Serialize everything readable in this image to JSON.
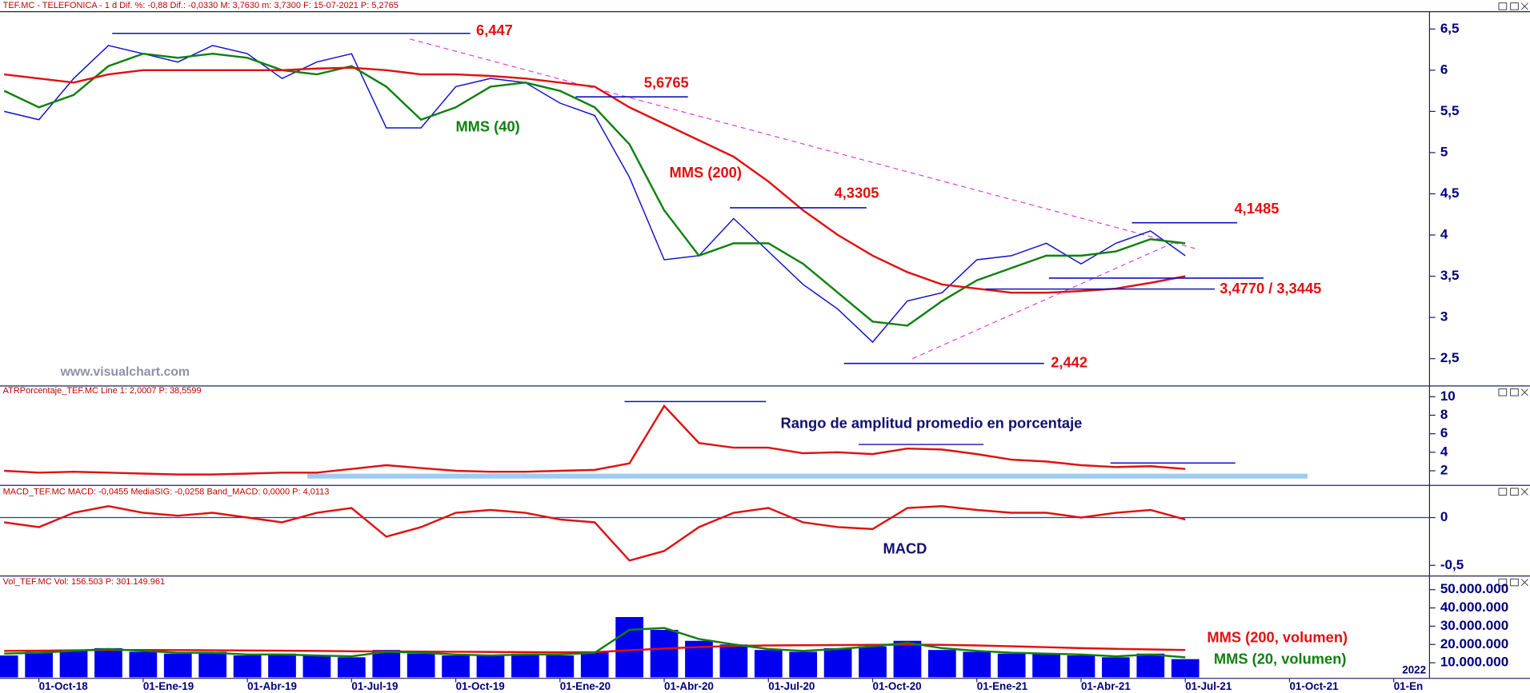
{
  "chart_data": [
    {
      "type": "line",
      "header": "TEF.MC - TELEFONICA - 1 d Dif. %: -0,88 Dif.: -0,0330 M: 3,7630 m: 3,7300 F: 15-07-2021 P: 5,2765",
      "watermark": "www.visualchart.com",
      "x": [
        -1,
        0,
        1,
        2,
        3,
        4,
        5,
        6,
        7,
        8,
        9,
        10,
        11,
        12,
        13,
        14,
        15,
        16,
        17,
        18,
        19,
        20,
        21,
        22,
        23,
        24,
        25,
        26,
        27,
        28,
        29,
        30,
        31,
        32,
        33
      ],
      "series": [
        {
          "color": "#1010d0",
          "values": [
            5.5,
            5.4,
            5.9,
            6.3,
            6.2,
            6.1,
            6.3,
            6.2,
            5.9,
            6.1,
            6.2,
            5.3,
            5.3,
            5.8,
            5.9,
            5.85,
            5.6,
            5.45,
            4.7,
            3.7,
            3.75,
            4.2,
            3.8,
            3.4,
            3.1,
            2.7,
            3.2,
            3.3,
            3.7,
            3.75,
            3.9,
            3.65,
            3.9,
            4.05,
            3.75
          ]
        },
        {
          "name": "MMS (40)",
          "color": "#108010",
          "values": [
            5.75,
            5.55,
            5.7,
            6.05,
            6.2,
            6.15,
            6.2,
            6.15,
            6.0,
            5.95,
            6.05,
            5.8,
            5.4,
            5.55,
            5.8,
            5.85,
            5.75,
            5.55,
            5.1,
            4.3,
            3.75,
            3.9,
            3.9,
            3.65,
            3.3,
            2.95,
            2.9,
            3.2,
            3.45,
            3.6,
            3.75,
            3.75,
            3.8,
            3.95,
            3.9
          ]
        },
        {
          "name": "MMS (200)",
          "color": "#e01010",
          "values": [
            5.95,
            5.9,
            5.85,
            5.95,
            6.0,
            6.0,
            6.0,
            6.0,
            6.0,
            6.02,
            6.03,
            6.0,
            5.95,
            5.95,
            5.93,
            5.9,
            5.85,
            5.8,
            5.55,
            5.35,
            5.15,
            4.95,
            4.65,
            4.3,
            4.0,
            3.75,
            3.55,
            3.4,
            3.35,
            3.3,
            3.3,
            3.32,
            3.35,
            3.42,
            3.5
          ]
        }
      ],
      "levels": [
        {
          "value": 6.447,
          "label": "6,447"
        },
        {
          "value": 5.6765,
          "label": "5,6765"
        },
        {
          "value": 4.3305,
          "label": "4,3305"
        },
        {
          "value": 4.1485,
          "label": "4,1485"
        },
        {
          "values": [
            3.477,
            3.3445
          ],
          "label": "3,4770 / 3,3445"
        },
        {
          "value": 2.442,
          "label": "2,442"
        }
      ],
      "ylim": [
        2.18,
        6.71
      ],
      "yticks": [
        {
          "value": 2.5,
          "label": "2,5"
        },
        3,
        {
          "value": 3.5,
          "label": "3,5"
        },
        4,
        {
          "value": 4.5,
          "label": "4,5"
        },
        5,
        {
          "value": 5.5,
          "label": "5,5"
        },
        6,
        {
          "value": 6.5,
          "label": "6,5"
        }
      ]
    },
    {
      "type": "line",
      "header": "ATRPorcentaje_TEF.MC Line 1: 2,0007 P: 38,5599",
      "annotation": "Rango de amplitud promedio en porcentaje",
      "x": [
        -1,
        0,
        1,
        2,
        3,
        4,
        5,
        6,
        7,
        8,
        9,
        10,
        11,
        12,
        13,
        14,
        15,
        16,
        17,
        18,
        19,
        20,
        21,
        22,
        23,
        24,
        25,
        26,
        27,
        28,
        29,
        30,
        31,
        32,
        33
      ],
      "series": [
        {
          "color": "#e01010",
          "values": [
            2.0,
            1.8,
            1.9,
            1.8,
            1.7,
            1.6,
            1.6,
            1.7,
            1.8,
            1.8,
            2.2,
            2.6,
            2.3,
            2.0,
            1.9,
            1.9,
            2.0,
            2.1,
            2.8,
            9.0,
            5.0,
            4.5,
            4.5,
            3.9,
            4.0,
            3.8,
            4.4,
            4.3,
            3.8,
            3.2,
            3.0,
            2.6,
            2.4,
            2.5,
            2.2
          ]
        }
      ],
      "ylim": [
        0.53,
        11.05
      ],
      "yticks": [
        2,
        4,
        6,
        8,
        10
      ]
    },
    {
      "type": "line",
      "header": "MACD_TEF.MC MACD: -0,0455 MediaSIG: -0,0258 Band_MACD: 0,0000 P: 4,0113",
      "annotation": "MACD",
      "x": [
        -1,
        0,
        1,
        2,
        3,
        4,
        5,
        6,
        7,
        8,
        9,
        10,
        11,
        12,
        13,
        14,
        15,
        16,
        17,
        18,
        19,
        20,
        21,
        22,
        23,
        24,
        25,
        26,
        27,
        28,
        29,
        30,
        31,
        32,
        33
      ],
      "series": [
        {
          "color": "#e01010",
          "values": [
            -0.05,
            -0.1,
            0.05,
            0.12,
            0.05,
            0.02,
            0.05,
            0.0,
            -0.05,
            0.05,
            0.1,
            -0.2,
            -0.1,
            0.05,
            0.08,
            0.05,
            -0.02,
            -0.05,
            -0.45,
            -0.35,
            -0.1,
            0.05,
            0.1,
            -0.05,
            -0.1,
            -0.12,
            0.1,
            0.12,
            0.08,
            0.05,
            0.05,
            0.0,
            0.05,
            0.08,
            -0.02
          ]
        }
      ],
      "ylim": [
        -0.602,
        0.327
      ],
      "yticks": [
        0,
        {
          "value": -0.5,
          "label": "-0,5"
        }
      ]
    },
    {
      "type": "bar",
      "header": "Vol_TEF.MC Vol: 156.503 P: 301.149.961",
      "year_label": "2022",
      "x": [
        -1,
        0,
        1,
        2,
        3,
        4,
        5,
        6,
        7,
        8,
        9,
        10,
        11,
        12,
        13,
        14,
        15,
        16,
        17,
        18,
        19,
        20,
        21,
        22,
        23,
        24,
        25,
        26,
        27,
        28,
        29,
        30,
        31,
        32,
        33
      ],
      "values": [
        14000000,
        16000000,
        17000000,
        18000000,
        16000000,
        15000000,
        16000000,
        14000000,
        15000000,
        14000000,
        13000000,
        17000000,
        15000000,
        14000000,
        14000000,
        15000000,
        14000000,
        16000000,
        35000000,
        28000000,
        22000000,
        20000000,
        17000000,
        16000000,
        18000000,
        19000000,
        22000000,
        17000000,
        16000000,
        15000000,
        15000000,
        14000000,
        13000000,
        15000000,
        12000000
      ],
      "color": "#0000ee",
      "series": [
        {
          "name": "MMS (200, volumen)",
          "color": "#e01010",
          "values": [
            16500000,
            16600000,
            16800000,
            17000000,
            17000000,
            16900000,
            16800000,
            16700000,
            16600000,
            16500000,
            16300000,
            16200000,
            16100000,
            16000000,
            15900000,
            15800000,
            15700000,
            15800000,
            16800000,
            17800000,
            18600000,
            19200000,
            19500000,
            19600000,
            19700000,
            19800000,
            19900000,
            19800000,
            19500000,
            19000000,
            18500000,
            18000000,
            17600000,
            17300000,
            17000000
          ]
        },
        {
          "name": "MMS (20, volumen)",
          "color": "#108010",
          "values": [
            15000000,
            15500000,
            16500000,
            17500000,
            16500000,
            15500000,
            15500000,
            14500000,
            14500000,
            14000000,
            13500000,
            16000000,
            15500000,
            14500000,
            14000000,
            14500000,
            14500000,
            15500000,
            28000000,
            29000000,
            23000000,
            20000000,
            17500000,
            16500000,
            17500000,
            19000000,
            21000000,
            18000000,
            16500000,
            15500000,
            15000000,
            14500000,
            13500000,
            14500000,
            13000000
          ]
        }
      ],
      "ylim": [
        2000000,
        56900000
      ],
      "yticks": [
        {
          "value": 10000000,
          "label": "10.000.000"
        },
        {
          "value": 20000000,
          "label": "20.000.000"
        },
        {
          "value": 30000000,
          "label": "30.000.000"
        },
        {
          "value": 40000000,
          "label": "40.000.000"
        },
        {
          "value": 50000000,
          "label": "50.000.000"
        }
      ],
      "xlim": [
        -1.12,
        40.03
      ],
      "xticks": [
        {
          "value": 0,
          "label": "01-Oct-18"
        },
        {
          "value": 3,
          "label": "01-Ene-19"
        },
        {
          "value": 6,
          "label": "01-Abr-19"
        },
        {
          "value": 9,
          "label": "01-Jul-19"
        },
        {
          "value": 12,
          "label": "01-Oct-19"
        },
        {
          "value": 15,
          "label": "01-Ene-20"
        },
        {
          "value": 18,
          "label": "01-Abr-20"
        },
        {
          "value": 21,
          "label": "01-Jul-20"
        },
        {
          "value": 24,
          "label": "01-Oct-20"
        },
        {
          "value": 27,
          "label": "01-Ene-21"
        },
        {
          "value": 30,
          "label": "01-Abr-21"
        },
        {
          "value": 33,
          "label": "01-Jul-21"
        },
        {
          "value": 36,
          "label": "01-Oct-21"
        },
        {
          "value": 39,
          "label": "01-En"
        }
      ]
    }
  ]
}
